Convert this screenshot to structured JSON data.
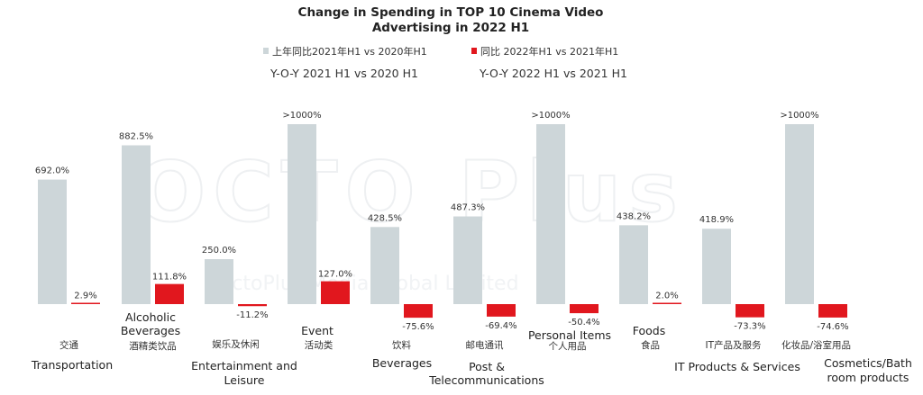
{
  "chart_data": {
    "type": "bar",
    "title": [
      "Change in Spending in TOP 10 Cinema Video",
      "Advertising in 2022 H1"
    ],
    "xlabel": "",
    "ylabel": "",
    "legend": [
      {
        "name": "上年同比2021年H1 vs 2020年H1",
        "subtitle": "Y-O-Y 2021 H1 vs 2020 H1",
        "color": "#cdd6d9"
      },
      {
        "name": "同比 2022年H1  vs 2021年H1",
        "subtitle": "Y-O-Y 2022 H1 vs 2021 H1",
        "color": "#e1171e"
      }
    ],
    "legend_position": "top-center",
    "grid": false,
    "categories": [
      {
        "cn": "交通",
        "en": [
          "Transportation"
        ]
      },
      {
        "cn": "酒精类饮品",
        "en": [
          "Alcoholic",
          "Beverages"
        ]
      },
      {
        "cn": "娱乐及休闲",
        "en": [
          "Entertainment and",
          "Leisure"
        ]
      },
      {
        "cn": "活动类",
        "en": [
          "Event"
        ]
      },
      {
        "cn": "饮料",
        "en": [
          "Beverages"
        ]
      },
      {
        "cn": "邮电通讯",
        "en": [
          "Post &",
          "Telecommunications"
        ]
      },
      {
        "cn": "个人用品",
        "en": [
          "Personal Items"
        ]
      },
      {
        "cn": "食品",
        "en": [
          "Foods"
        ]
      },
      {
        "cn": "IT产品及服务",
        "en": [
          "IT Products & Services"
        ]
      },
      {
        "cn": "化妆品/浴室用品",
        "en": [
          "Cosmetics/Bath",
          "room products"
        ]
      }
    ],
    "series": [
      {
        "name": "Y-O-Y 2021 H1 vs 2020 H1",
        "values": [
          692.0,
          882.5,
          250.0,
          1000,
          428.5,
          487.3,
          1000,
          438.2,
          418.9,
          1000
        ],
        "labels": [
          "692.0%",
          "882.5%",
          "250.0%",
          ">1000%",
          "428.5%",
          "487.3%",
          ">1000%",
          "438.2%",
          "418.9%",
          ">1000%"
        ]
      },
      {
        "name": "Y-O-Y 2022 H1 vs 2021 H1",
        "values": [
          2.9,
          111.8,
          -11.2,
          127.0,
          -75.6,
          -69.4,
          -50.4,
          2.0,
          -73.3,
          -74.6
        ],
        "labels": [
          "2.9%",
          "111.8%",
          "-11.2%",
          "127.0%",
          "-75.6%",
          "-69.4%",
          "-50.4%",
          "2.0%",
          "-73.3%",
          "-74.6%"
        ]
      }
    ]
  },
  "watermark": {
    "main": "OCTO Plus",
    "sub": "OctoPlus Media Global Limited"
  },
  "colors": {
    "grey": "#cdd6d9",
    "red": "#e1171e"
  }
}
